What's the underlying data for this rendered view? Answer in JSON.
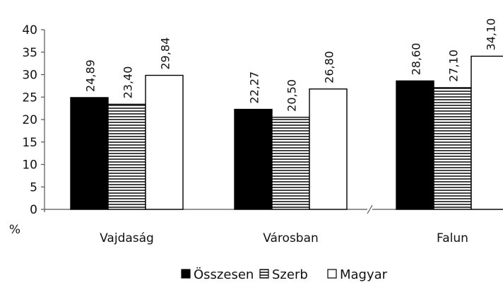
{
  "chart_data": {
    "type": "bar",
    "title": "",
    "xlabel": "",
    "ylabel": "%",
    "ylim": [
      0,
      40
    ],
    "yticks": [
      0,
      5,
      10,
      15,
      20,
      25,
      30,
      35,
      40
    ],
    "grid": false,
    "legend_position": "bottom",
    "categories": [
      "Vajdaság",
      "Városban",
      "Falun"
    ],
    "series": [
      {
        "name": "Összesen",
        "values": [
          24.89,
          22.27,
          28.6
        ],
        "labels": [
          "24,89",
          "22,27",
          "28,60"
        ],
        "fill": "#000000",
        "pattern": "solid"
      },
      {
        "name": "Szerb",
        "values": [
          23.4,
          20.5,
          27.1
        ],
        "labels": [
          "23,40",
          "20,50",
          "27,10"
        ],
        "fill": "#ffffff",
        "pattern": "horizontal-stripes"
      },
      {
        "name": "Magyar",
        "values": [
          29.84,
          26.8,
          34.1
        ],
        "labels": [
          "29,84",
          "26,80",
          "34,10"
        ],
        "fill": "#ffffff",
        "pattern": "none"
      }
    ]
  }
}
